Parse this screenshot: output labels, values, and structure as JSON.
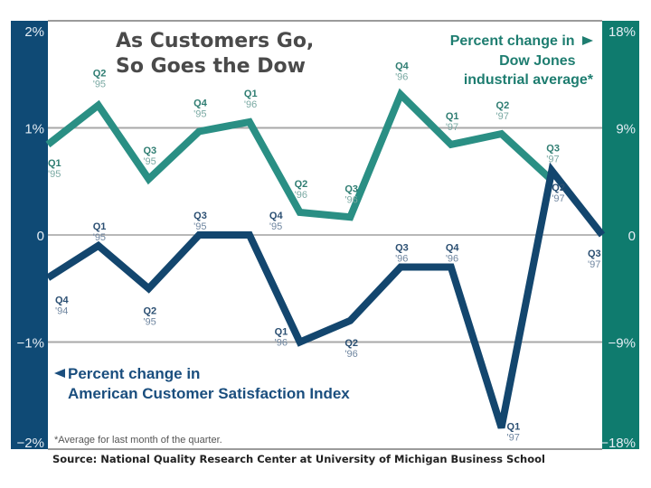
{
  "chart_data": {
    "type": "line",
    "title": "As Customers Go, So Goes the Dow",
    "title_lines": [
      "As Customers Go,",
      "So Goes the Dow"
    ],
    "left_axis": {
      "label_lines": [
        "Percent change in",
        "American Customer Satisfaction Index"
      ],
      "ticks": [
        "2%",
        "1%",
        "0",
        "−1%",
        "−2%"
      ],
      "range": [
        -2,
        2
      ],
      "color": "#0f4a75"
    },
    "right_axis": {
      "label_lines": [
        "Percent change in",
        "Dow Jones",
        "industrial average*"
      ],
      "ticks": [
        "18%",
        "9%",
        "0",
        "−9%",
        "−18%"
      ],
      "range": [
        -18,
        18
      ],
      "color": "#0f7b6e"
    },
    "x": [
      "Q4 '94",
      "Q1 '95",
      "Q2 '95",
      "Q3 '95",
      "Q4 '95",
      "Q1 '96",
      "Q2 '96",
      "Q3 '96",
      "Q4 '96",
      "Q1 '97",
      "Q2 '97",
      "Q3 '97"
    ],
    "series": [
      {
        "name": "Percent change in American Customer Satisfaction Index",
        "axis": "left",
        "color": "#13466e",
        "points": [
          {
            "q": "Q4",
            "y": "'94",
            "value": -0.4
          },
          {
            "q": "Q1",
            "y": "'95",
            "value": -0.1
          },
          {
            "q": "Q2",
            "y": "'95",
            "value": -0.5
          },
          {
            "q": "Q3",
            "y": "'95",
            "value": 0.0
          },
          {
            "q": "Q4",
            "y": "'95",
            "value": 0.0
          },
          {
            "q": "Q1",
            "y": "'96",
            "value": -1.0
          },
          {
            "q": "Q2",
            "y": "'96",
            "value": -0.8
          },
          {
            "q": "Q3",
            "y": "'96",
            "value": -0.3
          },
          {
            "q": "Q4",
            "y": "'96",
            "value": -0.3
          },
          {
            "q": "Q1",
            "y": "'97",
            "value": -1.8
          },
          {
            "q": "Q2",
            "y": "'97",
            "value": 0.6
          },
          {
            "q": "Q3",
            "y": "'97",
            "value": 0.0
          }
        ]
      },
      {
        "name": "Percent change in Dow Jones industrial average*",
        "axis": "right",
        "color": "#2a8f84",
        "points": [
          {
            "q": "Q1",
            "y": "'95",
            "value": 7.6
          },
          {
            "q": "Q2",
            "y": "'95",
            "value": 10.9
          },
          {
            "q": "Q3",
            "y": "'95",
            "value": 4.7
          },
          {
            "q": "Q4",
            "y": "'95",
            "value": 8.7
          },
          {
            "q": "Q1",
            "y": "'96",
            "value": 9.5
          },
          {
            "q": "Q2",
            "y": "'96",
            "value": 1.9
          },
          {
            "q": "Q3",
            "y": "'96",
            "value": 1.5
          },
          {
            "q": "Q4",
            "y": "'96",
            "value": 11.8
          },
          {
            "q": "Q1",
            "y": "'97",
            "value": 7.6
          },
          {
            "q": "Q2",
            "y": "'97",
            "value": 8.5
          },
          {
            "q": "Q3",
            "y": "'97",
            "value": 4.6
          }
        ]
      }
    ],
    "grid": true,
    "footnote": "*Average for last month of the quarter.",
    "source": "Source: National Quality Research Center at University of Michigan Business School"
  }
}
